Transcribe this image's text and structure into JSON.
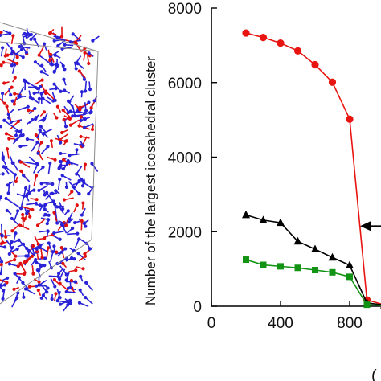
{
  "panel_left": {
    "description_colors": {
      "atoms_a": "#e01010",
      "atoms_b": "#2a22d6",
      "box_edge": "#8a8a8a"
    }
  },
  "chart_data": {
    "type": "line",
    "ylabel": "Number of the largest icosahedral cluster",
    "xlabel_visible_fragment": "(",
    "ylim": [
      0,
      8000
    ],
    "xlim": [
      0,
      1000
    ],
    "y_ticks": [
      0,
      2000,
      4000,
      6000,
      8000
    ],
    "x_ticks": [
      0,
      400,
      800
    ],
    "y_tick_labels": [
      "0",
      "2000",
      "4000",
      "6000",
      "8000"
    ],
    "x_tick_labels": [
      "0",
      "400",
      "800"
    ],
    "grid": false,
    "series": [
      {
        "marker": "circle",
        "color": "#e8140f",
        "x": [
          200,
          300,
          400,
          500,
          600,
          700,
          800,
          900,
          1000
        ],
        "y": [
          7330,
          7210,
          7060,
          6850,
          6480,
          6010,
          5020,
          170,
          40
        ]
      },
      {
        "marker": "triangle",
        "color": "#000000",
        "x": [
          200,
          300,
          400,
          500,
          600,
          700,
          800,
          900,
          1000
        ],
        "y": [
          2450,
          2310,
          2240,
          1740,
          1530,
          1310,
          1100,
          90,
          30
        ]
      },
      {
        "marker": "square",
        "color": "#139313",
        "x": [
          200,
          300,
          400,
          500,
          600,
          700,
          800,
          900,
          1000
        ],
        "y": [
          1250,
          1110,
          1070,
          1030,
          970,
          910,
          790,
          40,
          20
        ]
      }
    ],
    "annotation": {
      "type": "arrow",
      "points_to": "black series",
      "x": 870,
      "y": 2150
    }
  }
}
